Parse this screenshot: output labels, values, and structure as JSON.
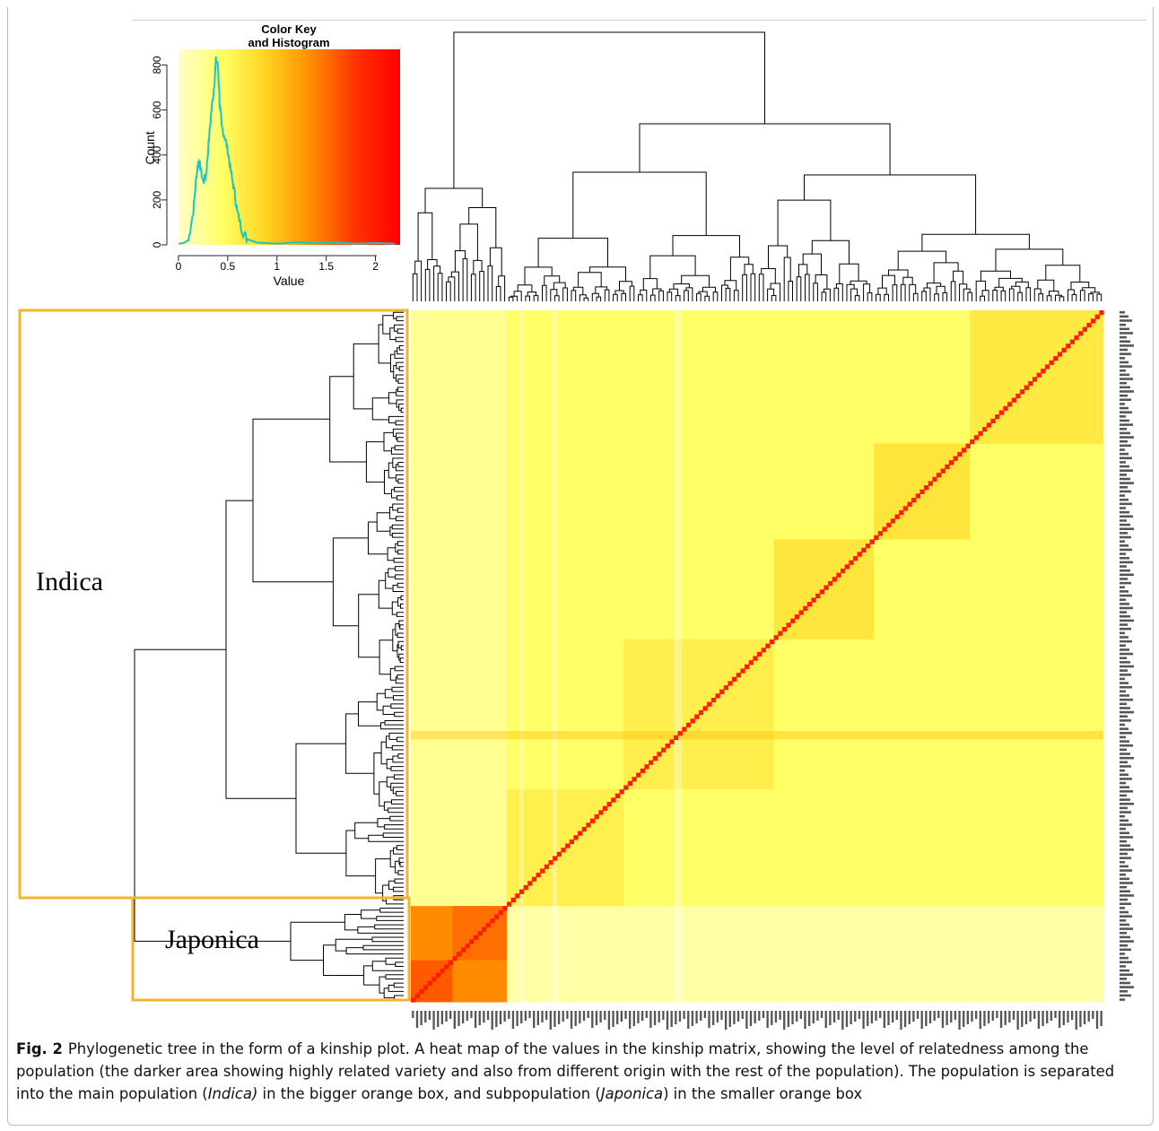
{
  "chart_data": [
    {
      "type": "histogram",
      "title": "Color Key\nand Histogram",
      "xlabel": "Value",
      "ylabel": "Count",
      "x_ticks": [
        "0",
        "0.5",
        "1",
        "1.5",
        "2"
      ],
      "y_ticks": [
        "0",
        "200",
        "400",
        "600",
        "800"
      ],
      "xlim": [
        0,
        2.25
      ],
      "ylim": [
        0,
        870
      ],
      "color_scale": [
        "#ffffc8",
        "#ffff66",
        "#ffd21e",
        "#ff8c00",
        "#ff3200",
        "#ff0000"
      ],
      "trace_color": "#18c7c7",
      "density": {
        "x": [
          0,
          0.05,
          0.1,
          0.15,
          0.18,
          0.2,
          0.22,
          0.25,
          0.28,
          0.3,
          0.33,
          0.36,
          0.38,
          0.4,
          0.42,
          0.44,
          0.47,
          0.5,
          0.53,
          0.57,
          0.6,
          0.65,
          0.7,
          0.8,
          0.9,
          1.0,
          1.2,
          1.4,
          1.6,
          1.8,
          2.0,
          2.2
        ],
        "y": [
          5,
          8,
          20,
          150,
          300,
          370,
          350,
          280,
          310,
          420,
          580,
          700,
          820,
          800,
          620,
          520,
          480,
          420,
          330,
          230,
          140,
          60,
          25,
          10,
          8,
          5,
          12,
          8,
          10,
          5,
          8,
          5
        ]
      }
    },
    {
      "type": "heatmap",
      "groups": [
        "Indica",
        "Japonica"
      ],
      "group_sizes": [
        143,
        23
      ],
      "within_indica": 0.45,
      "within_japonica": 1.35,
      "between_groups": 0.25,
      "diagonal": 2.0,
      "box_color": "#f2b52b"
    }
  ],
  "labels": {
    "indica": "Indica",
    "japonica": "Japonica"
  },
  "caption": {
    "fig": "Fig. 2",
    "t1": "Phylogenetic tree in the form of a kinship plot. A heat map of the values in the kinship matrix, showing the level of relatedness among the population (the darker area showing highly related variety and also from different origin with the rest of the population). The population is separated into the main population (",
    "i1": "Indica)",
    "t2": " in the bigger orange box, and subpopulation (",
    "i2": "Japonica",
    "t3": ") in the smaller orange box"
  }
}
